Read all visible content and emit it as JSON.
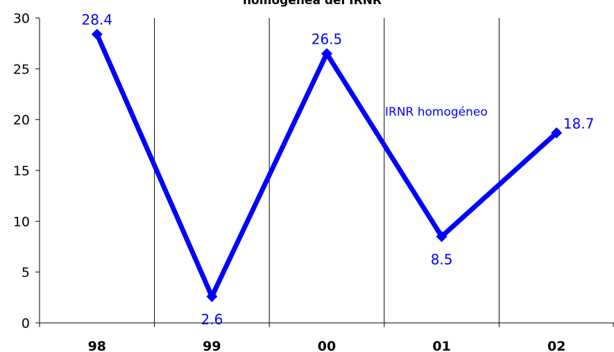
{
  "chart_data": {
    "type": "line",
    "title": "homogénea del IRNR",
    "categories": [
      "98",
      "99",
      "00",
      "01",
      "02"
    ],
    "series": [
      {
        "name": "IRNR homogéneo",
        "values": [
          28.4,
          2.6,
          26.5,
          8.5,
          18.7
        ]
      }
    ],
    "data_labels": [
      "28.4",
      "2.6",
      "26.5",
      "8.5",
      "18.7"
    ],
    "y_ticks": [
      "0",
      "5",
      "10",
      "15",
      "20",
      "25",
      "30"
    ],
    "ylim": [
      0,
      30
    ],
    "xlabel": "",
    "ylabel": "",
    "grid": "vertical",
    "colors": {
      "series": "#0000ff",
      "axis": "#000000",
      "text": "#000000"
    }
  }
}
